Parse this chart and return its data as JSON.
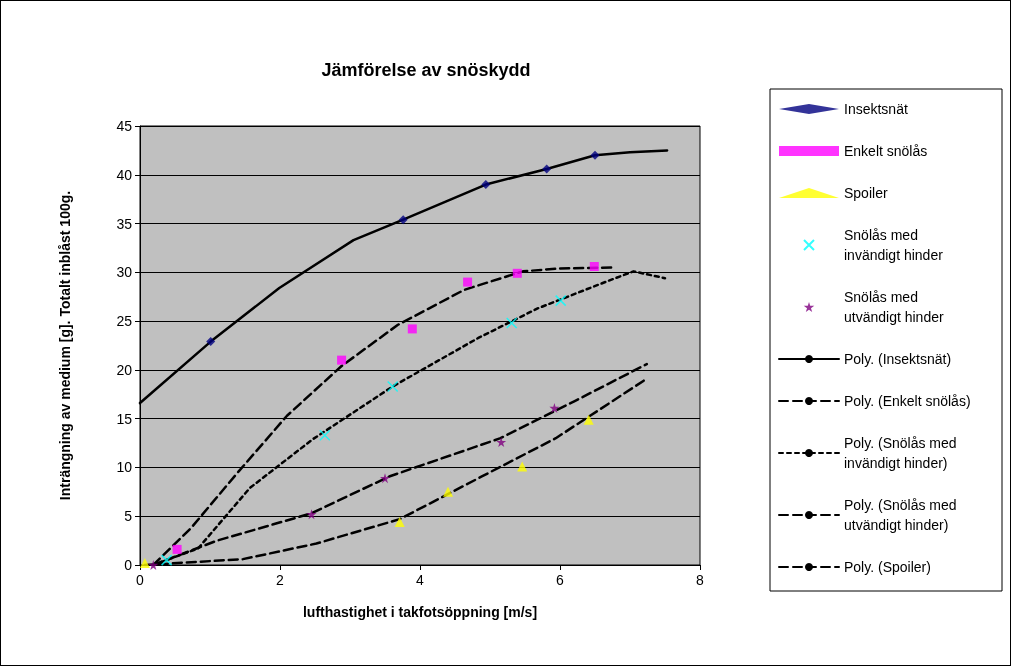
{
  "chart_data": {
    "type": "scatter",
    "title": "Jämförelse av snöskydd",
    "xlabel": "lufthastighet i takfotsöppning [m/s]",
    "ylabel": "Inträngning av medium [g]. Totalt inblåst 100g.",
    "xlim": [
      0,
      8
    ],
    "xticks": [
      0,
      2,
      4,
      6,
      8
    ],
    "ylim": [
      0,
      45
    ],
    "yticks": [
      0,
      5,
      10,
      15,
      20,
      25,
      30,
      35,
      40,
      45
    ],
    "grid": "y",
    "legend": "right",
    "series": [
      {
        "name": "Insektsnät",
        "marker": "diamond",
        "color": "#000080",
        "x": [
          1.01,
          3.76,
          4.94,
          5.81,
          6.5
        ],
        "values": [
          22.9,
          35.4,
          39.0,
          40.6,
          42.0
        ]
      },
      {
        "name": "Enkelt snölås",
        "marker": "square",
        "color": "#ff00ff",
        "x": [
          0.53,
          2.88,
          3.89,
          4.68,
          5.39,
          6.49
        ],
        "values": [
          1.6,
          21.0,
          24.2,
          29.0,
          29.9,
          30.6
        ]
      },
      {
        "name": "Spoiler",
        "marker": "triangle",
        "color": "#ffff00",
        "x": [
          0.07,
          3.71,
          4.4,
          5.46,
          6.41
        ],
        "values": [
          0.2,
          4.4,
          7.5,
          10.1,
          14.9
        ]
      },
      {
        "name": "Snölås med invändigt hinder",
        "marker": "cross",
        "color": "#00ffff",
        "x": [
          0.38,
          2.64,
          3.61,
          5.31,
          6.01
        ],
        "values": [
          0.5,
          13.3,
          18.3,
          24.8,
          27.1
        ]
      },
      {
        "name": "Snölås med utvändigt hinder",
        "marker": "star",
        "color": "#800080",
        "x": [
          0.19,
          2.45,
          3.5,
          5.16,
          5.92
        ],
        "values": [
          0,
          5.2,
          8.9,
          12.6,
          16.1
        ]
      },
      {
        "name": "Poly. (Insektsnät)",
        "type": "line",
        "marker": "none",
        "line_style": "solid",
        "color": "#000000",
        "x": [
          0,
          1.01,
          1.99,
          3.05,
          3.76,
          4.94,
          5.81,
          6.5,
          7.0,
          7.53
        ],
        "values": [
          16.6,
          22.9,
          28.4,
          33.3,
          35.4,
          39.0,
          40.6,
          42.0,
          42.3,
          42.5
        ]
      },
      {
        "name": "Poly. (Enkelt snölås)",
        "type": "line",
        "marker": "none",
        "line_style": "dashed",
        "color": "#000000",
        "x": [
          0.19,
          0.73,
          1.41,
          2.1,
          2.88,
          3.68,
          4.63,
          5.47,
          6.0,
          6.74
        ],
        "values": [
          0,
          3.8,
          9.6,
          15.3,
          20.4,
          24.6,
          28.2,
          30.1,
          30.4,
          30.5
        ]
      },
      {
        "name": "Poly. (Snölås med invändigt hinder)",
        "type": "line",
        "marker": "none",
        "line_style": "dotted",
        "color": "#000000",
        "x": [
          0.19,
          0.83,
          1.57,
          2.47,
          3.61,
          4.84,
          5.68,
          6.68,
          7.05,
          7.5
        ],
        "values": [
          0,
          1.7,
          7.9,
          12.9,
          18.3,
          23.3,
          26.3,
          29.1,
          30.1,
          29.4
        ]
      },
      {
        "name": "Poly. (Snölås med utvändigt hinder)",
        "type": "line",
        "marker": "none",
        "line_style": "dashed",
        "color": "#000000",
        "x": [
          0.19,
          1.1,
          2.45,
          3.57,
          5.15,
          6.21,
          7.24
        ],
        "values": [
          0,
          2.5,
          5.3,
          9.1,
          13.0,
          16.8,
          20.6
        ]
      },
      {
        "name": "Poly. (Spoiler)",
        "type": "line",
        "marker": "none",
        "line_style": "dashed",
        "color": "#000000",
        "x": [
          0.07,
          1.47,
          2.52,
          3.71,
          4.89,
          5.94,
          7.24
        ],
        "values": [
          0,
          0.6,
          2.2,
          4.7,
          9.1,
          13.0,
          19.1
        ]
      }
    ]
  }
}
